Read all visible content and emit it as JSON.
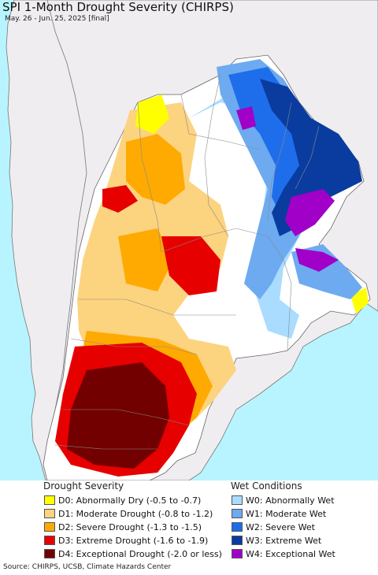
{
  "title": "SPI 1-Month Drought Severity (CHIRPS)",
  "subtitle": "May. 26 - Jun. 25, 2025 [final]",
  "legend": {
    "drought": {
      "heading": "Drought Severity",
      "items": [
        {
          "label": "D0: Abnormally Dry (-0.5 to -0.7)",
          "color": "#ffff00"
        },
        {
          "label": "D1: Moderate Drought (-0.8 to -1.2)",
          "color": "#fcd37f"
        },
        {
          "label": "D2: Severe Drought (-1.3 to -1.5)",
          "color": "#ffaa00"
        },
        {
          "label": "D3: Extreme Drought (-1.6 to -1.9)",
          "color": "#e60000"
        },
        {
          "label": "D4: Exceptional Drought (-2.0 or less)",
          "color": "#730000"
        }
      ]
    },
    "wet": {
      "heading": "Wet Conditions",
      "items": [
        {
          "label": "W0: Abnormally Wet",
          "color": "#aadcff"
        },
        {
          "label": "W1: Moderate Wet",
          "color": "#6eaaf0"
        },
        {
          "label": "W2: Severe Wet",
          "color": "#1e6eeb"
        },
        {
          "label": "W3: Extreme Wet",
          "color": "#0a3ca0"
        },
        {
          "label": "W4: Exceptional Wet",
          "color": "#a000c8"
        }
      ]
    }
  },
  "source": "Source: CHIRPS, UCSB, Climate Hazards Center",
  "colors": {
    "ocean": "#b8f4ff",
    "land_outside": "#efedf0",
    "no_data": "#ffffff",
    "borders": "#7a7a7a"
  }
}
